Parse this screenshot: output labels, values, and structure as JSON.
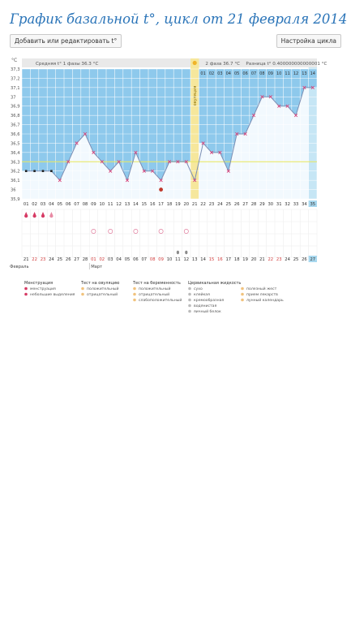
{
  "page": {
    "title": "График базальной t°, цикл от 21 февраля 2014",
    "add_button": "Добавить или редактировать t°",
    "settings_button": "Настройка цикла"
  },
  "chart_data": {
    "type": "line",
    "ylabel": "°C",
    "ylim": [
      35.9,
      37.3
    ],
    "yticks": [
      "35,9",
      "36",
      "36,1",
      "36,2",
      "36,3",
      "36,4",
      "36,5",
      "36,6",
      "36,7",
      "36,8",
      "36,9",
      "37",
      "37,1",
      "37,2",
      "37,3"
    ],
    "cycle_days": [
      "01",
      "02",
      "03",
      "04",
      "05",
      "06",
      "07",
      "08",
      "09",
      "10",
      "11",
      "12",
      "13",
      "14",
      "15",
      "16",
      "17",
      "18",
      "19",
      "20",
      "21",
      "22",
      "23",
      "24",
      "25",
      "26",
      "27",
      "28",
      "29",
      "30",
      "31",
      "32",
      "33",
      "34",
      "35"
    ],
    "phase2_days": [
      "01",
      "02",
      "03",
      "04",
      "05",
      "06",
      "07",
      "08",
      "09",
      "10",
      "11",
      "12",
      "13",
      "14"
    ],
    "dates": [
      "21",
      "22",
      "23",
      "24",
      "25",
      "26",
      "27",
      "28",
      "01",
      "02",
      "03",
      "04",
      "05",
      "06",
      "07",
      "08",
      "09",
      "10",
      "11",
      "12",
      "13",
      "14",
      "15",
      "16",
      "17",
      "18",
      "19",
      "20",
      "21",
      "22",
      "23",
      "24",
      "25",
      "26",
      "27"
    ],
    "month_labels": [
      "Февраль",
      "Март"
    ],
    "temperatures": [
      36.2,
      36.2,
      36.2,
      36.2,
      36.1,
      36.3,
      36.5,
      36.6,
      36.4,
      36.3,
      36.2,
      36.3,
      36.1,
      36.4,
      36.2,
      36.2,
      36.1,
      36.3,
      36.3,
      36.3,
      36.1,
      36.5,
      36.4,
      36.4,
      36.2,
      36.6,
      36.6,
      36.8,
      37.0,
      37.0,
      36.9,
      36.9,
      36.8,
      37.1,
      37.1
    ],
    "coverline": 36.3,
    "ovulation_day": 21,
    "phase1_avg_label": "Средняя t° 1 фазы 36.3 °C",
    "phase2_avg_label": "2 фаза 36.7 °C",
    "difference_label": "Разница t° 0.400000000000001 °C",
    "ovulation_label": "овуляция",
    "colors": {
      "phase1": "#8ec9ec",
      "phase2": "#8ec9ec",
      "ovulation": "#f6e79c",
      "line": "#7c8fb4",
      "point": "#d8447a",
      "coverline": "#e8e65a",
      "today": "#a8d8ef"
    }
  },
  "legend": {
    "groups": [
      {
        "title": "Менструация",
        "items": [
          {
            "icon": "drop-icon",
            "text": "менструация"
          },
          {
            "icon": "small-drop-icon",
            "text": "небольшие выделения"
          }
        ]
      },
      {
        "title": "Тест на овуляцию",
        "items": [
          {
            "icon": "circle-positive-icon",
            "text": "положительный"
          },
          {
            "icon": "circle-negative-icon",
            "text": "отрицательный"
          }
        ]
      },
      {
        "title": "Тест на беременность",
        "items": [
          {
            "icon": "circle-positive-icon",
            "text": "положительный"
          },
          {
            "icon": "circle-negative-icon",
            "text": "отрицательный"
          },
          {
            "icon": "circle-weak-icon",
            "text": "слабоположительный"
          }
        ]
      },
      {
        "title": "Цервикальная жидкость",
        "items": [
          {
            "icon": "dry-icon",
            "text": "сухо"
          },
          {
            "icon": "sticky-icon",
            "text": "клейкая"
          },
          {
            "icon": "creamy-icon",
            "text": "кремообразная"
          },
          {
            "icon": "watery-icon",
            "text": "водянистая"
          },
          {
            "icon": "eggwhite-icon",
            "text": "яичный белок"
          }
        ]
      },
      {
        "title": "",
        "items": [
          {
            "icon": "yellow-body-icon",
            "text": "полезный жест"
          },
          {
            "icon": "intimacy-icon",
            "text": "прием лекарств"
          },
          {
            "icon": "moon-icon",
            "text": "лунный календарь"
          }
        ]
      }
    ]
  }
}
